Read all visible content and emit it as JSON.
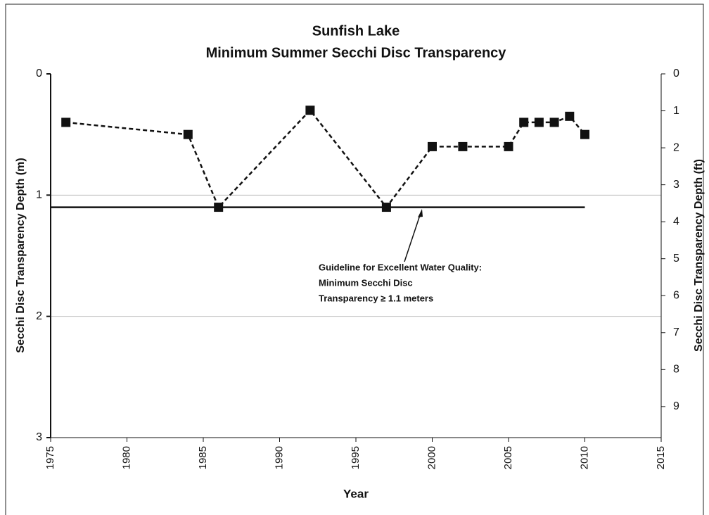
{
  "chart_data": {
    "type": "line",
    "title": [
      "Sunfish Lake",
      "Minimum Summer Secchi Disc Transparency"
    ],
    "xlabel": "Year",
    "ylabel": "Secchi Disc Transparency Depth (m)",
    "y2label": "Secchi Disc Transparency Depth (ft)",
    "x": [
      1976,
      1984,
      1986,
      1992,
      1997,
      2000,
      2002,
      2005,
      2006,
      2007,
      2008,
      2009,
      2010
    ],
    "series": [
      {
        "name": "Minimum Summer Secchi Disc Transparency",
        "color": "#111111",
        "values": [
          0.4,
          0.5,
          1.1,
          0.3,
          1.1,
          0.6,
          0.6,
          0.6,
          0.4,
          0.4,
          0.4,
          0.35,
          0.5
        ]
      }
    ],
    "guideline": {
      "value": 1.1,
      "x": [
        1975,
        2010
      ]
    },
    "annotation": [
      "Guideline for Excellent Water Quality:",
      "Minimum Secchi Disc",
      "Transparency ≥ 1.1 meters"
    ],
    "xlim": [
      1975,
      2015
    ],
    "xticks": [
      1975,
      1980,
      1985,
      1990,
      1995,
      2000,
      2005,
      2010,
      2015
    ],
    "ylim": [
      0,
      3
    ],
    "yticks": [
      0,
      1,
      2,
      3
    ],
    "y_inverted": true,
    "y2lim": [
      0,
      9.84
    ],
    "y2ticks": [
      0,
      1,
      2,
      3,
      4,
      5,
      6,
      7,
      8,
      9
    ],
    "grid": true
  }
}
